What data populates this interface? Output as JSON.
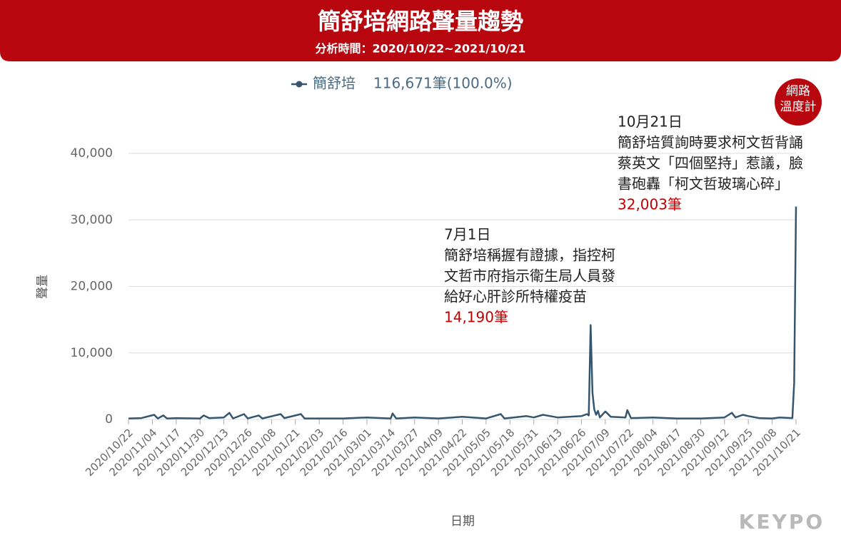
{
  "chart_data": {
    "type": "line",
    "title": "簡舒培網路聲量趨勢",
    "subtitle": "分析時間：2020/10/22~2021/10/21",
    "y_label": "聲量",
    "x_label": "日期",
    "legend_note": "116,671筆(100.0%)",
    "badge": [
      "網路",
      "溫度計"
    ],
    "logo": "KEYPO",
    "x": [
      "2020/10/22",
      "2020/10/29",
      "2020/11/05",
      "2020/11/07",
      "2020/11/10",
      "2020/11/12",
      "2020/11/17",
      "2020/11/30",
      "2020/12/02",
      "2020/12/05",
      "2020/12/13",
      "2020/12/16",
      "2020/12/18",
      "2020/12/24",
      "2020/12/26",
      "2021/01/01",
      "2021/01/03",
      "2021/01/13",
      "2021/01/15",
      "2021/01/24",
      "2021/01/26",
      "2021/02/03",
      "2021/02/16",
      "2021/03/01",
      "2021/03/14",
      "2021/03/15",
      "2021/03/17",
      "2021/03/27",
      "2021/04/09",
      "2021/04/22",
      "2021/05/05",
      "2021/05/13",
      "2021/05/15",
      "2021/05/27",
      "2021/05/31",
      "2021/06/05",
      "2021/06/13",
      "2021/06/26",
      "2021/06/29",
      "2021/06/30",
      "2021/07/01",
      "2021/07/02",
      "2021/07/03",
      "2021/07/04",
      "2021/07/05",
      "2021/07/06",
      "2021/07/09",
      "2021/07/12",
      "2021/07/20",
      "2021/07/21",
      "2021/07/23",
      "2021/08/04",
      "2021/08/17",
      "2021/08/30",
      "2021/09/12",
      "2021/09/16",
      "2021/09/18",
      "2021/09/22",
      "2021/09/25",
      "2021/10/01",
      "2021/10/08",
      "2021/10/12",
      "2021/10/19",
      "2021/10/20",
      "2021/10/21"
    ],
    "series": [
      {
        "name": "簡舒培",
        "color": "#35566e",
        "values": [
          150,
          200,
          700,
          150,
          600,
          150,
          200,
          150,
          600,
          200,
          300,
          1000,
          150,
          800,
          150,
          600,
          150,
          800,
          200,
          800,
          150,
          150,
          150,
          300,
          150,
          900,
          150,
          300,
          150,
          400,
          150,
          800,
          150,
          500,
          300,
          700,
          300,
          500,
          800,
          600,
          14190,
          4000,
          1500,
          700,
          1300,
          300,
          1200,
          400,
          300,
          1400,
          200,
          300,
          150,
          150,
          300,
          1000,
          300,
          700,
          500,
          200,
          150,
          300,
          200,
          5500,
          32003
        ]
      }
    ],
    "xticks": [
      "2020/10/22",
      "2020/11/04",
      "2020/11/17",
      "2020/11/30",
      "2020/12/13",
      "2020/12/26",
      "2021/01/08",
      "2021/01/21",
      "2021/02/03",
      "2021/02/16",
      "2021/03/01",
      "2021/03/14",
      "2021/03/27",
      "2021/04/09",
      "2021/04/22",
      "2021/05/05",
      "2021/05/18",
      "2021/05/31",
      "2021/06/13",
      "2021/06/26",
      "2021/07/09",
      "2021/07/22",
      "2021/08/04",
      "2021/08/17",
      "2021/08/30",
      "2021/09/12",
      "2021/09/25",
      "2021/10/08",
      "2021/10/21"
    ],
    "ylim": [
      0,
      40000
    ],
    "yticks": [
      0,
      {
        "value": 10000,
        "label": "10,000"
      },
      {
        "value": 20000,
        "label": "20,000"
      },
      {
        "value": 30000,
        "label": "30,000"
      },
      {
        "value": 40000,
        "label": "40,000"
      }
    ],
    "grid": true,
    "annotations": [
      {
        "date": "7月1日",
        "lines": [
          "簡舒培稱握有證據，指控柯",
          "文哲市府指示衛生局人員發",
          "給好心肝診所特權疫苗"
        ],
        "value_label": "14,190筆"
      },
      {
        "date": "10月21日",
        "lines": [
          "簡舒培質詢時要求柯文哲背誦",
          "蔡英文「四個堅持」惹議，臉",
          "書砲轟「柯文哲玻璃心碎」"
        ],
        "value_label": "32,003筆"
      }
    ]
  }
}
